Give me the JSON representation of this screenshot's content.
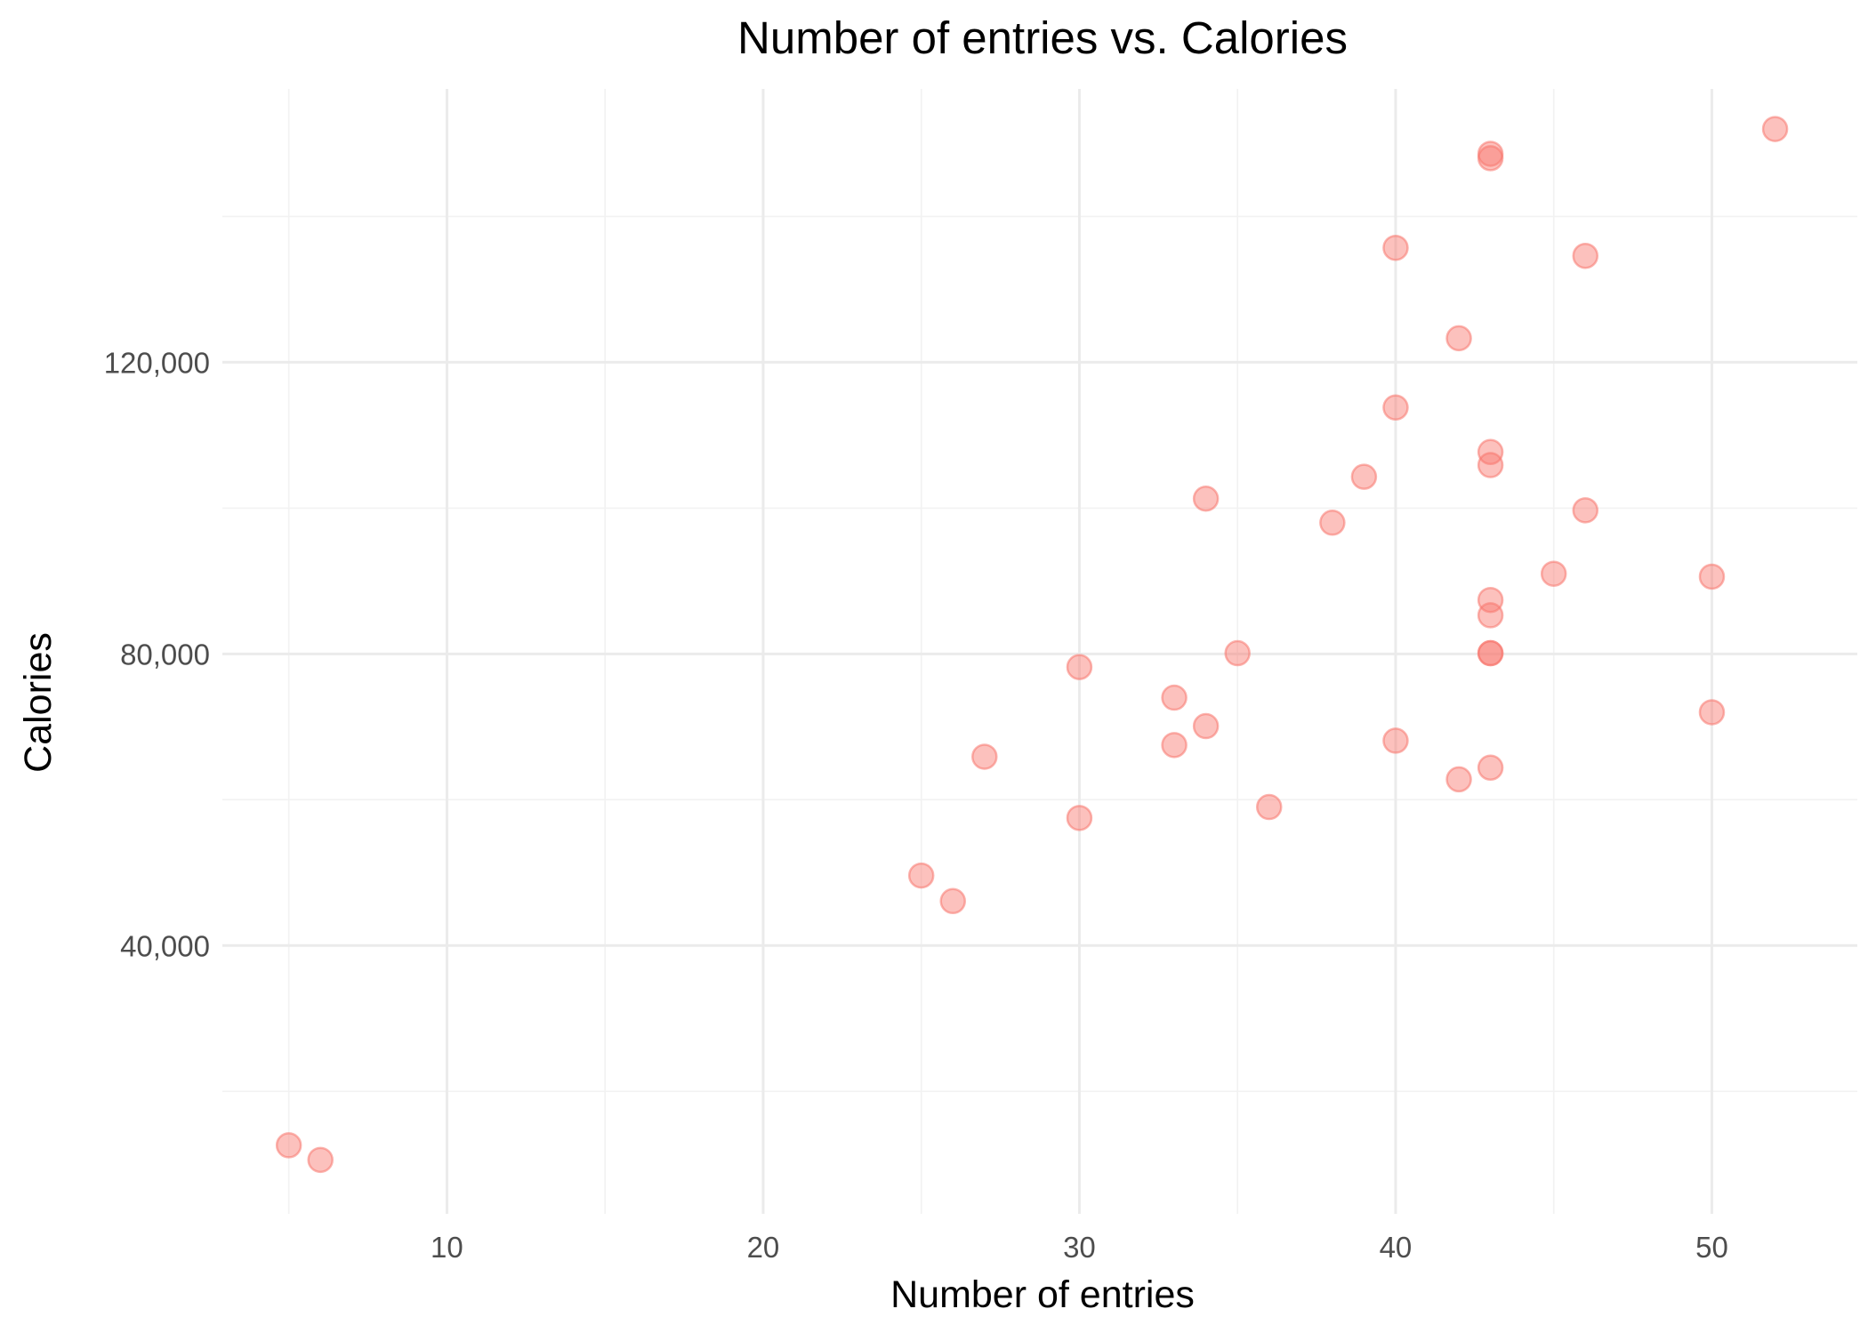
{
  "chart_data": {
    "type": "scatter",
    "title": "Number of entries vs. Calories",
    "xlabel": "Number of entries",
    "ylabel": "Calories",
    "xlim": [
      2.9,
      54.6
    ],
    "ylim": [
      3200,
      157500
    ],
    "x_major_ticks": [
      10,
      20,
      30,
      40,
      50
    ],
    "x_tick_labels": [
      "10",
      "20",
      "30",
      "40",
      "50"
    ],
    "x_minor_ticks": [
      5,
      15,
      25,
      35,
      45
    ],
    "y_major_ticks": [
      40000,
      80000,
      120000
    ],
    "y_tick_labels": [
      "40,000",
      "80,000",
      "120,000"
    ],
    "y_minor_ticks": [
      20000,
      60000,
      100000,
      140000
    ],
    "grid": true,
    "legend": "none",
    "point_color": "#f8766d",
    "point_opacity": 0.45,
    "points": [
      {
        "x": 5,
        "y": 12600
      },
      {
        "x": 6,
        "y": 10600
      },
      {
        "x": 25,
        "y": 49600
      },
      {
        "x": 26,
        "y": 46100
      },
      {
        "x": 27,
        "y": 65900
      },
      {
        "x": 30,
        "y": 78200
      },
      {
        "x": 30,
        "y": 57500
      },
      {
        "x": 33,
        "y": 74000
      },
      {
        "x": 33,
        "y": 67500
      },
      {
        "x": 34,
        "y": 70100
      },
      {
        "x": 34,
        "y": 101300
      },
      {
        "x": 35,
        "y": 80100
      },
      {
        "x": 36,
        "y": 59000
      },
      {
        "x": 38,
        "y": 98000
      },
      {
        "x": 39,
        "y": 104300
      },
      {
        "x": 40,
        "y": 135700
      },
      {
        "x": 40,
        "y": 113800
      },
      {
        "x": 40,
        "y": 68100
      },
      {
        "x": 42,
        "y": 123300
      },
      {
        "x": 42,
        "y": 62800
      },
      {
        "x": 43,
        "y": 148600
      },
      {
        "x": 43,
        "y": 148000
      },
      {
        "x": 43,
        "y": 107700
      },
      {
        "x": 43,
        "y": 105900
      },
      {
        "x": 43,
        "y": 87400
      },
      {
        "x": 43,
        "y": 85300
      },
      {
        "x": 43,
        "y": 80100
      },
      {
        "x": 43,
        "y": 80100
      },
      {
        "x": 43,
        "y": 64400
      },
      {
        "x": 45,
        "y": 91000
      },
      {
        "x": 46,
        "y": 134600
      },
      {
        "x": 46,
        "y": 99700
      },
      {
        "x": 50,
        "y": 90600
      },
      {
        "x": 50,
        "y": 72000
      },
      {
        "x": 52,
        "y": 152000
      }
    ]
  }
}
